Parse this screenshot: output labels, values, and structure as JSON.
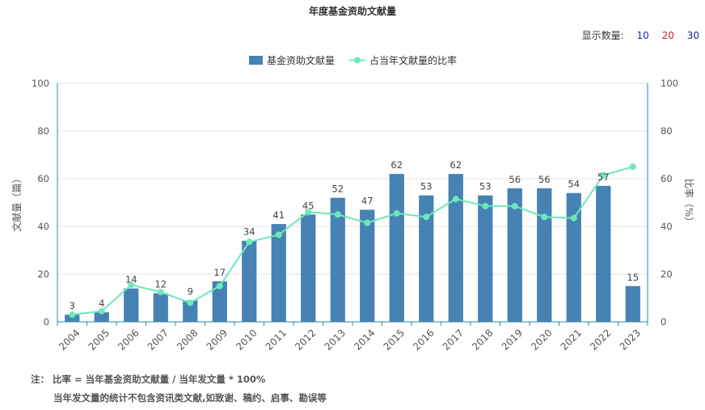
{
  "title": "年度基金资助文献量",
  "display_count": {
    "label": "显示数量:",
    "options": [
      {
        "label": "10",
        "color": "#2222cc"
      },
      {
        "label": "20",
        "color": "#cc2222"
      },
      {
        "label": "30",
        "color": "#222288"
      }
    ]
  },
  "legend": {
    "bar_label": "基金资助文献量",
    "line_label": "占当年文献量的比率"
  },
  "footnote": {
    "line1": "注：  比率 = 当年基金资助文献量 / 当年发文量 * 100%",
    "line2": "当年发文量的统计不包含资讯类文献,如致谢、稿约、启事、勘误等"
  },
  "chart_data": {
    "type": "bar",
    "categories": [
      "2004",
      "2005",
      "2006",
      "2007",
      "2008",
      "2009",
      "2010",
      "2011",
      "2012",
      "2013",
      "2014",
      "2015",
      "2016",
      "2017",
      "2018",
      "2019",
      "2020",
      "2021",
      "2022",
      "2023"
    ],
    "series": [
      {
        "name": "基金资助文献量",
        "type": "bar",
        "axis": "left",
        "values": [
          3,
          4,
          14,
          12,
          9,
          17,
          34,
          41,
          45,
          52,
          47,
          62,
          53,
          62,
          53,
          56,
          56,
          54,
          57,
          15
        ],
        "color": "#4682b4"
      },
      {
        "name": "占当年文献量的比率",
        "type": "line",
        "axis": "right",
        "values": [
          3,
          4.5,
          15.5,
          12.5,
          8,
          15,
          33.5,
          36.5,
          46,
          45,
          41.5,
          45.5,
          44,
          51.5,
          48.5,
          48.5,
          44,
          43.5,
          61.5,
          65
        ],
        "color": "#6ee8b8"
      }
    ],
    "ylabel_left": "文献量（篇）",
    "ylabel_right": "比率（%）",
    "ylim_left": [
      0,
      100
    ],
    "ylim_right": [
      0,
      100
    ],
    "yticks": [
      "0",
      "20",
      "40",
      "60",
      "80",
      "100"
    ],
    "grid": true,
    "legend_position": "top-center",
    "axis_color": "#2a8ca6"
  }
}
